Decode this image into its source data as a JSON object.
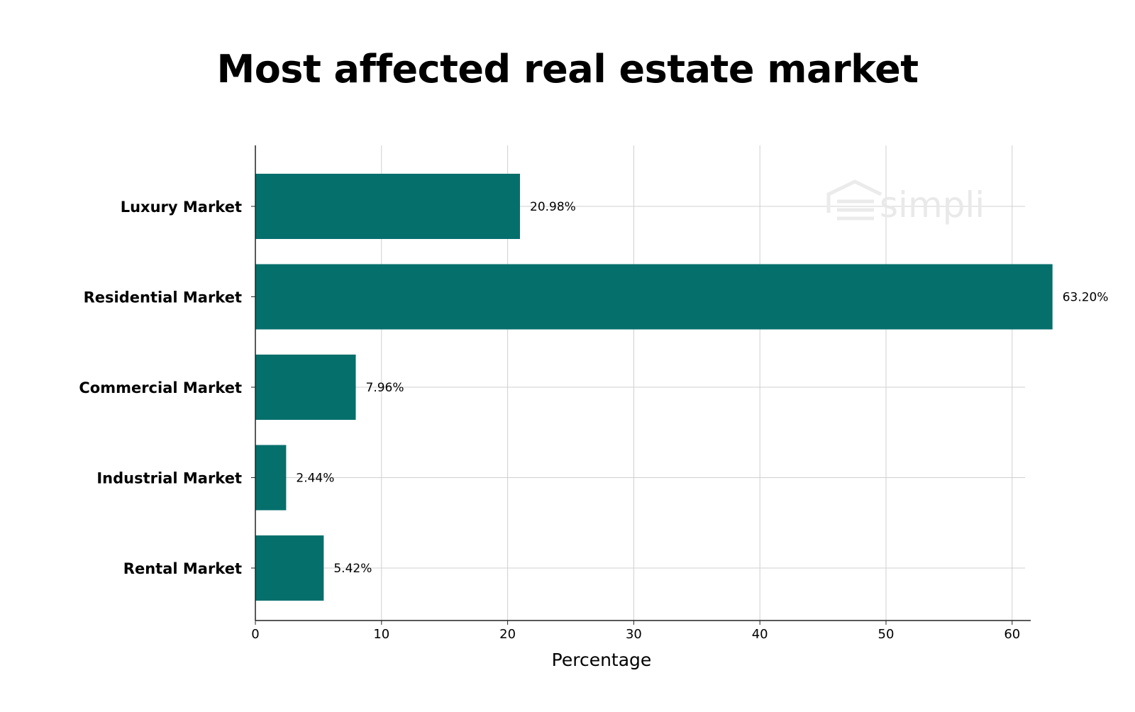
{
  "chart_data": {
    "type": "bar",
    "orientation": "horizontal",
    "title": "Most affected real estate market",
    "xlabel": "Percentage",
    "ylabel": "",
    "categories": [
      "Luxury Market",
      "Residential Market",
      "Commercial Market",
      "Industrial Market",
      "Rental Market"
    ],
    "values": [
      20.98,
      63.2,
      7.96,
      2.44,
      5.42
    ],
    "value_labels": [
      "20.98%",
      "63.20%",
      "7.96%",
      "2.44%",
      "5.42%"
    ],
    "xlim": [
      0,
      65
    ],
    "xticks": [
      0,
      10,
      20,
      30,
      40,
      50,
      60
    ],
    "grid": true,
    "bar_color": "#056f6c"
  },
  "watermark": {
    "text": "simpli",
    "icon": "house-logo-icon"
  }
}
